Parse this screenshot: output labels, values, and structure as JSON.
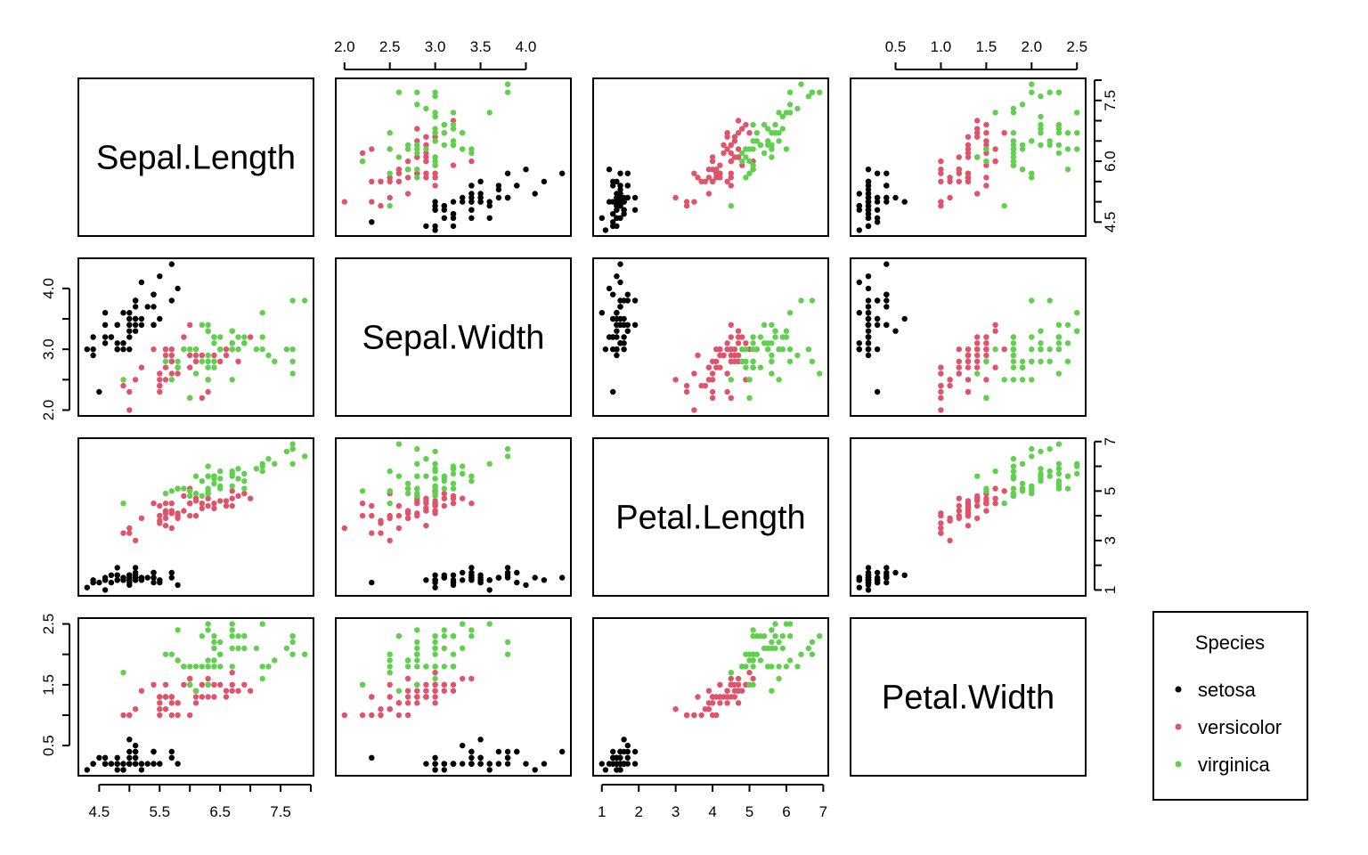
{
  "chart_data": {
    "type": "scatter",
    "subtype": "scatterplot-matrix",
    "title": "",
    "variables": [
      "Sepal.Length",
      "Sepal.Width",
      "Petal.Length",
      "Petal.Width"
    ],
    "axis_ticks": {
      "Sepal.Length": [
        "4.5",
        "5.5",
        "6.5",
        "7.5"
      ],
      "Sepal.Width": [
        "2.0",
        "2.5",
        "3.0",
        "3.5",
        "4.0"
      ],
      "Petal.Length": [
        "1",
        "3",
        "5",
        "7"
      ],
      "Petal.Width": [
        "0.5",
        "1.5",
        "2.5"
      ]
    },
    "axis_minor_ticks": {
      "Sepal.Length": [
        4.5,
        5.0,
        5.5,
        6.0,
        6.5,
        7.0,
        7.5,
        8.0
      ],
      "Sepal.Width": [
        2.0,
        2.5,
        3.0,
        3.5,
        4.0
      ],
      "Petal.Length": [
        1,
        2,
        3,
        4,
        5,
        6,
        7
      ],
      "Petal.Width": [
        0.5,
        1.0,
        1.5,
        2.0,
        2.5
      ]
    },
    "top_axis_ticks": {
      "Sepal.Width": [
        "2.0",
        "2.5",
        "3.0",
        "3.5",
        "4.0"
      ],
      "Petal.Width": [
        "0.5",
        "1.0",
        "1.5",
        "2.0",
        "2.5"
      ]
    },
    "right_axis_ticks": {
      "Sepal.Length": [
        "4.5",
        "6.0",
        "7.5"
      ],
      "Petal.Length": [
        "1",
        "3",
        "5",
        "7"
      ]
    },
    "right_axis_minor_ticks": {
      "Sepal.Length": [
        4.5,
        5.0,
        5.5,
        6.0,
        6.5,
        7.0,
        7.5,
        8.0
      ]
    },
    "left_axis_ticks": {
      "Sepal.Width": [
        "2.0",
        "3.0",
        "4.0"
      ],
      "Petal.Width": [
        "0.5",
        "1.5",
        "2.5"
      ]
    },
    "left_axis_minor_ticks": {
      "Sepal.Width": [
        2.0,
        2.5,
        3.0,
        3.5,
        4.0
      ],
      "Petal.Width": [
        0.5,
        1.0,
        1.5,
        2.0,
        2.5
      ]
    },
    "bottom_axis_ticks": {
      "Sepal.Length": [
        "4.5",
        "5.5",
        "6.5",
        "7.5"
      ],
      "Petal.Length": [
        "1",
        "2",
        "3",
        "4",
        "5",
        "6",
        "7"
      ]
    },
    "legend": {
      "title": "Species",
      "placement": "right",
      "entries": [
        {
          "label": "setosa",
          "color": "#000000"
        },
        {
          "label": "versicolor",
          "color": "#DF536B"
        },
        {
          "label": "virginica",
          "color": "#61D04F"
        }
      ]
    },
    "series": [
      {
        "name": "setosa",
        "color": "#000000",
        "points": [
          [
            5.1,
            3.5,
            1.4,
            0.2
          ],
          [
            4.9,
            3.0,
            1.4,
            0.2
          ],
          [
            4.7,
            3.2,
            1.3,
            0.2
          ],
          [
            4.6,
            3.1,
            1.5,
            0.2
          ],
          [
            5.0,
            3.6,
            1.4,
            0.2
          ],
          [
            5.4,
            3.9,
            1.7,
            0.4
          ],
          [
            4.6,
            3.4,
            1.4,
            0.3
          ],
          [
            5.0,
            3.4,
            1.5,
            0.2
          ],
          [
            4.4,
            2.9,
            1.4,
            0.2
          ],
          [
            4.9,
            3.1,
            1.5,
            0.1
          ],
          [
            5.4,
            3.7,
            1.5,
            0.2
          ],
          [
            4.8,
            3.4,
            1.6,
            0.2
          ],
          [
            4.8,
            3.0,
            1.4,
            0.1
          ],
          [
            4.3,
            3.0,
            1.1,
            0.1
          ],
          [
            5.8,
            4.0,
            1.2,
            0.2
          ],
          [
            5.7,
            4.4,
            1.5,
            0.4
          ],
          [
            5.4,
            3.9,
            1.3,
            0.4
          ],
          [
            5.1,
            3.5,
            1.4,
            0.3
          ],
          [
            5.7,
            3.8,
            1.7,
            0.3
          ],
          [
            5.1,
            3.8,
            1.5,
            0.3
          ],
          [
            5.4,
            3.4,
            1.7,
            0.2
          ],
          [
            5.1,
            3.7,
            1.5,
            0.4
          ],
          [
            4.6,
            3.6,
            1.0,
            0.2
          ],
          [
            5.1,
            3.3,
            1.7,
            0.5
          ],
          [
            4.8,
            3.4,
            1.9,
            0.2
          ],
          [
            5.0,
            3.0,
            1.6,
            0.2
          ],
          [
            5.0,
            3.4,
            1.6,
            0.4
          ],
          [
            5.2,
            3.5,
            1.5,
            0.2
          ],
          [
            5.2,
            3.4,
            1.4,
            0.2
          ],
          [
            4.7,
            3.2,
            1.6,
            0.2
          ],
          [
            4.8,
            3.1,
            1.6,
            0.2
          ],
          [
            5.4,
            3.4,
            1.5,
            0.4
          ],
          [
            5.2,
            4.1,
            1.5,
            0.1
          ],
          [
            5.5,
            4.2,
            1.4,
            0.2
          ],
          [
            4.9,
            3.1,
            1.5,
            0.2
          ],
          [
            5.0,
            3.2,
            1.2,
            0.2
          ],
          [
            5.5,
            3.5,
            1.3,
            0.2
          ],
          [
            4.9,
            3.6,
            1.4,
            0.1
          ],
          [
            4.4,
            3.0,
            1.3,
            0.2
          ],
          [
            5.1,
            3.4,
            1.5,
            0.2
          ],
          [
            5.0,
            3.5,
            1.3,
            0.3
          ],
          [
            4.5,
            2.3,
            1.3,
            0.3
          ],
          [
            4.4,
            3.2,
            1.3,
            0.2
          ],
          [
            5.0,
            3.5,
            1.6,
            0.6
          ],
          [
            5.1,
            3.8,
            1.9,
            0.4
          ],
          [
            4.8,
            3.0,
            1.4,
            0.3
          ],
          [
            5.1,
            3.8,
            1.6,
            0.2
          ],
          [
            4.6,
            3.2,
            1.4,
            0.2
          ],
          [
            5.3,
            3.7,
            1.5,
            0.2
          ],
          [
            5.0,
            3.3,
            1.4,
            0.2
          ]
        ]
      },
      {
        "name": "versicolor",
        "color": "#DF536B",
        "points": [
          [
            7.0,
            3.2,
            4.7,
            1.4
          ],
          [
            6.4,
            3.2,
            4.5,
            1.5
          ],
          [
            6.9,
            3.1,
            4.9,
            1.5
          ],
          [
            5.5,
            2.3,
            4.0,
            1.3
          ],
          [
            6.5,
            2.8,
            4.6,
            1.5
          ],
          [
            5.7,
            2.8,
            4.5,
            1.3
          ],
          [
            6.3,
            3.3,
            4.7,
            1.6
          ],
          [
            4.9,
            2.4,
            3.3,
            1.0
          ],
          [
            6.6,
            2.9,
            4.6,
            1.3
          ],
          [
            5.2,
            2.7,
            3.9,
            1.4
          ],
          [
            5.0,
            2.0,
            3.5,
            1.0
          ],
          [
            5.9,
            3.0,
            4.2,
            1.5
          ],
          [
            6.0,
            2.2,
            4.0,
            1.0
          ],
          [
            6.1,
            2.9,
            4.7,
            1.4
          ],
          [
            5.6,
            2.9,
            3.6,
            1.3
          ],
          [
            6.7,
            3.1,
            4.4,
            1.4
          ],
          [
            5.6,
            3.0,
            4.5,
            1.5
          ],
          [
            5.8,
            2.7,
            4.1,
            1.0
          ],
          [
            6.2,
            2.2,
            4.5,
            1.5
          ],
          [
            5.6,
            2.5,
            3.9,
            1.1
          ],
          [
            5.9,
            3.2,
            4.8,
            1.8
          ],
          [
            6.1,
            2.8,
            4.0,
            1.3
          ],
          [
            6.3,
            2.5,
            4.9,
            1.5
          ],
          [
            6.1,
            2.8,
            4.7,
            1.2
          ],
          [
            6.4,
            2.9,
            4.3,
            1.3
          ],
          [
            6.6,
            3.0,
            4.4,
            1.4
          ],
          [
            6.8,
            2.8,
            4.8,
            1.4
          ],
          [
            6.7,
            3.0,
            5.0,
            1.7
          ],
          [
            6.0,
            2.9,
            4.5,
            1.5
          ],
          [
            5.7,
            2.6,
            3.5,
            1.0
          ],
          [
            5.5,
            2.4,
            3.8,
            1.1
          ],
          [
            5.5,
            2.4,
            3.7,
            1.0
          ],
          [
            5.8,
            2.7,
            3.9,
            1.2
          ],
          [
            6.0,
            2.7,
            5.1,
            1.6
          ],
          [
            5.4,
            3.0,
            4.5,
            1.5
          ],
          [
            6.0,
            3.4,
            4.5,
            1.6
          ],
          [
            6.7,
            3.1,
            4.7,
            1.5
          ],
          [
            6.3,
            2.3,
            4.4,
            1.3
          ],
          [
            5.6,
            3.0,
            4.1,
            1.3
          ],
          [
            5.5,
            2.5,
            4.0,
            1.3
          ],
          [
            5.5,
            2.6,
            4.4,
            1.2
          ],
          [
            6.1,
            3.0,
            4.6,
            1.4
          ],
          [
            5.8,
            2.6,
            4.0,
            1.2
          ],
          [
            5.0,
            2.3,
            3.3,
            1.0
          ],
          [
            5.6,
            2.7,
            4.2,
            1.3
          ],
          [
            5.7,
            3.0,
            4.2,
            1.2
          ],
          [
            5.7,
            2.9,
            4.2,
            1.3
          ],
          [
            6.2,
            2.9,
            4.3,
            1.3
          ],
          [
            5.1,
            2.5,
            3.0,
            1.1
          ],
          [
            5.7,
            2.8,
            4.1,
            1.3
          ]
        ]
      },
      {
        "name": "virginica",
        "color": "#61D04F",
        "points": [
          [
            6.3,
            3.3,
            6.0,
            2.5
          ],
          [
            5.8,
            2.7,
            5.1,
            1.9
          ],
          [
            7.1,
            3.0,
            5.9,
            2.1
          ],
          [
            6.3,
            2.9,
            5.6,
            1.8
          ],
          [
            6.5,
            3.0,
            5.8,
            2.2
          ],
          [
            7.6,
            3.0,
            6.6,
            2.1
          ],
          [
            4.9,
            2.5,
            4.5,
            1.7
          ],
          [
            7.3,
            2.9,
            6.3,
            1.8
          ],
          [
            6.7,
            2.5,
            5.8,
            1.8
          ],
          [
            7.2,
            3.6,
            6.1,
            2.5
          ],
          [
            6.5,
            3.2,
            5.1,
            2.0
          ],
          [
            6.4,
            2.7,
            5.3,
            1.9
          ],
          [
            6.8,
            3.0,
            5.5,
            2.1
          ],
          [
            5.7,
            2.5,
            5.0,
            2.0
          ],
          [
            5.8,
            2.8,
            5.1,
            2.4
          ],
          [
            6.4,
            3.2,
            5.3,
            2.3
          ],
          [
            6.5,
            3.0,
            5.5,
            1.8
          ],
          [
            7.7,
            3.8,
            6.7,
            2.2
          ],
          [
            7.7,
            2.6,
            6.9,
            2.3
          ],
          [
            6.0,
            2.2,
            5.0,
            1.5
          ],
          [
            6.9,
            3.2,
            5.7,
            2.3
          ],
          [
            5.6,
            2.8,
            4.9,
            2.0
          ],
          [
            7.7,
            2.8,
            6.7,
            2.0
          ],
          [
            6.3,
            2.7,
            4.9,
            1.8
          ],
          [
            6.7,
            3.3,
            5.7,
            2.1
          ],
          [
            7.2,
            3.2,
            6.0,
            1.8
          ],
          [
            6.2,
            2.8,
            4.8,
            1.8
          ],
          [
            6.1,
            3.0,
            4.9,
            1.8
          ],
          [
            6.4,
            2.8,
            5.6,
            2.1
          ],
          [
            7.2,
            3.0,
            5.8,
            1.6
          ],
          [
            7.4,
            2.8,
            6.1,
            1.9
          ],
          [
            7.9,
            3.8,
            6.4,
            2.0
          ],
          [
            6.4,
            2.8,
            5.6,
            2.2
          ],
          [
            6.3,
            2.8,
            5.1,
            1.5
          ],
          [
            6.1,
            2.6,
            5.6,
            1.4
          ],
          [
            7.7,
            3.0,
            6.1,
            2.3
          ],
          [
            6.3,
            3.4,
            5.6,
            2.4
          ],
          [
            6.4,
            3.1,
            5.5,
            1.8
          ],
          [
            6.0,
            3.0,
            4.8,
            1.8
          ],
          [
            6.9,
            3.1,
            5.4,
            2.1
          ],
          [
            6.7,
            3.1,
            5.6,
            2.4
          ],
          [
            6.9,
            3.1,
            5.1,
            2.3
          ],
          [
            5.8,
            2.7,
            5.1,
            1.9
          ],
          [
            6.8,
            3.2,
            5.9,
            2.3
          ],
          [
            6.7,
            3.3,
            5.7,
            2.5
          ],
          [
            6.7,
            3.0,
            5.2,
            2.3
          ],
          [
            6.3,
            2.5,
            5.0,
            1.9
          ],
          [
            6.5,
            3.0,
            5.2,
            2.0
          ],
          [
            6.2,
            3.4,
            5.4,
            2.3
          ],
          [
            5.9,
            3.0,
            5.1,
            1.8
          ]
        ]
      }
    ],
    "grid": false
  }
}
